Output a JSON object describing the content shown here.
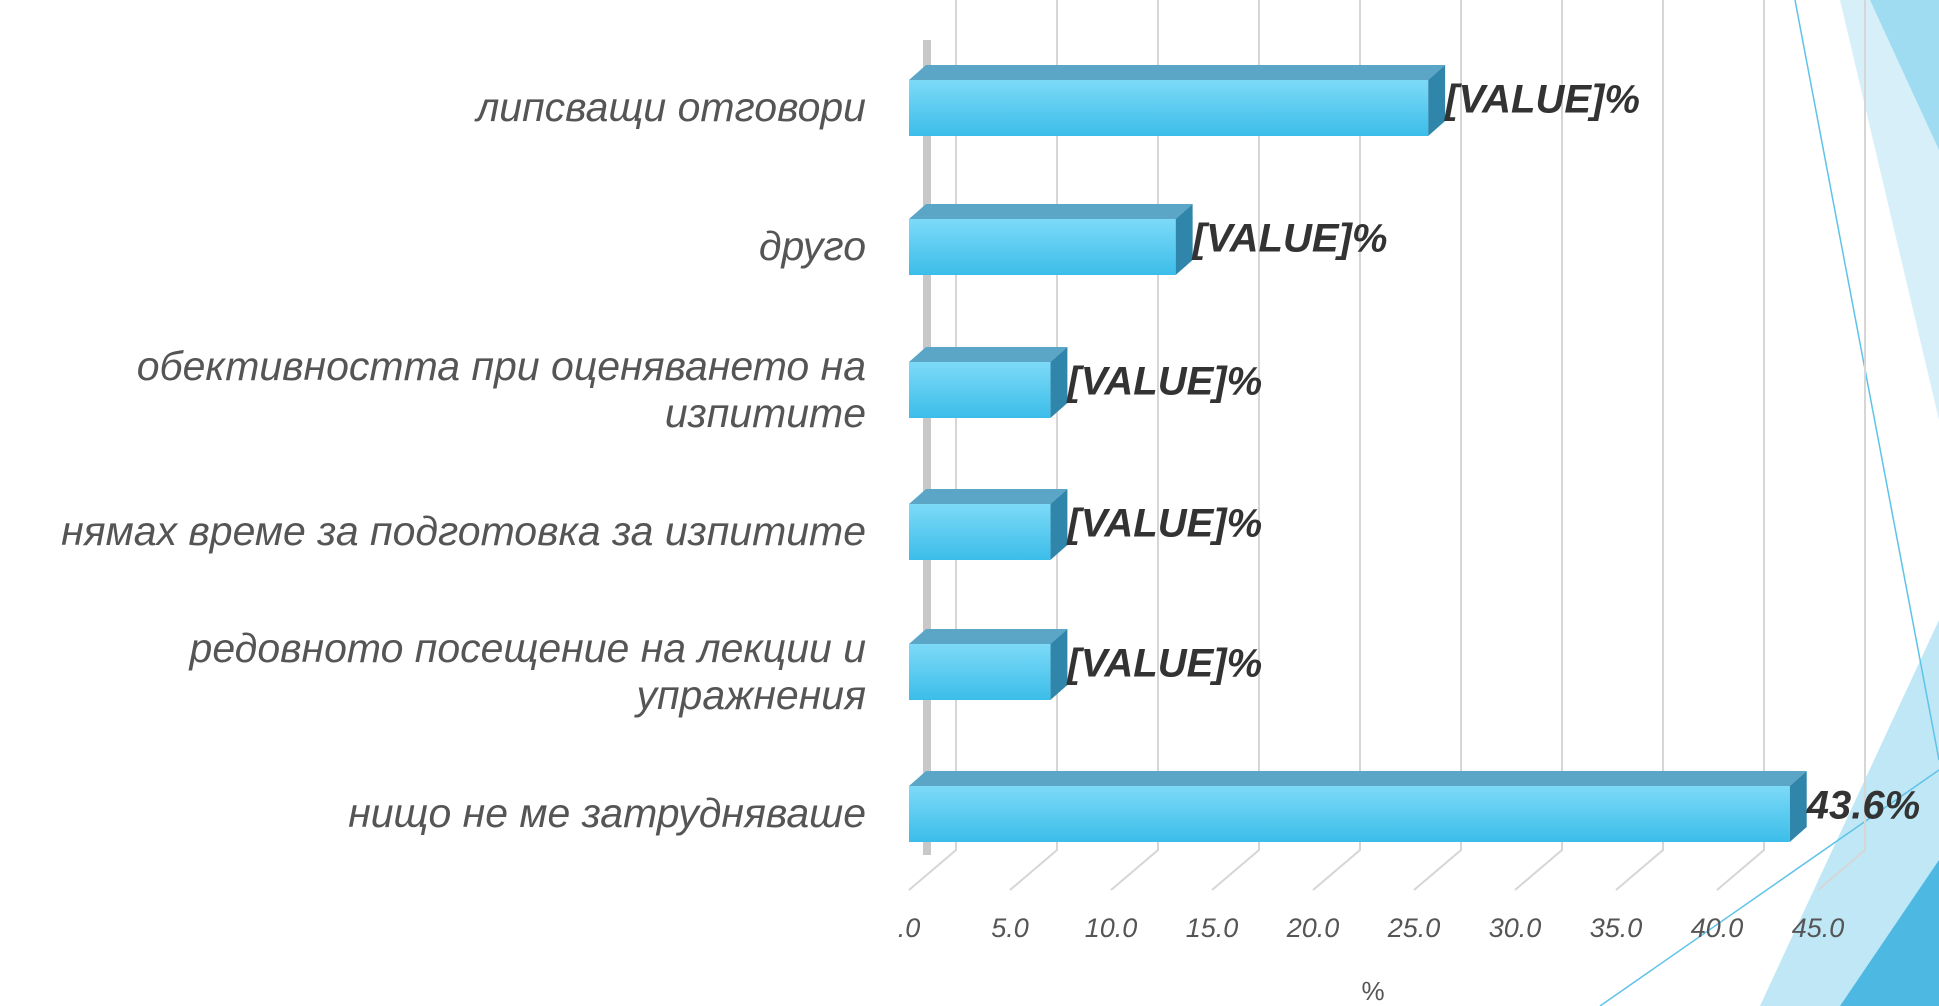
{
  "chart_data": {
    "type": "bar",
    "orientation": "horizontal",
    "categories": [
      "липсващи отговори",
      "друго",
      "обективността при оценяването на изпитите",
      "нямах време за подготовка за изпитите",
      "редовното посещение на лекции и упражнения",
      "нищо не ме затрудняваше"
    ],
    "values": [
      25.7,
      13.2,
      7.0,
      7.0,
      7.0,
      43.6
    ],
    "value_labels": [
      "[VALUE]%",
      "[VALUE]%",
      "[VALUE]%",
      "[VALUE]%",
      "[VALUE]%",
      "43.6%"
    ],
    "color": "#4cc8f0",
    "xlim": [
      0,
      45
    ],
    "xticks": [
      {
        "value": 0,
        "label": ".0"
      },
      {
        "value": 5,
        "label": "5.0"
      },
      {
        "value": 10,
        "label": "10.0"
      },
      {
        "value": 15,
        "label": "15.0"
      },
      {
        "value": 20,
        "label": "20.0"
      },
      {
        "value": 25,
        "label": "25.0"
      },
      {
        "value": 30,
        "label": "30.0"
      },
      {
        "value": 35,
        "label": "35.0"
      },
      {
        "value": 40,
        "label": "40.0"
      },
      {
        "value": 45,
        "label": "45.0"
      }
    ],
    "xlabel": "%",
    "grid": true
  }
}
